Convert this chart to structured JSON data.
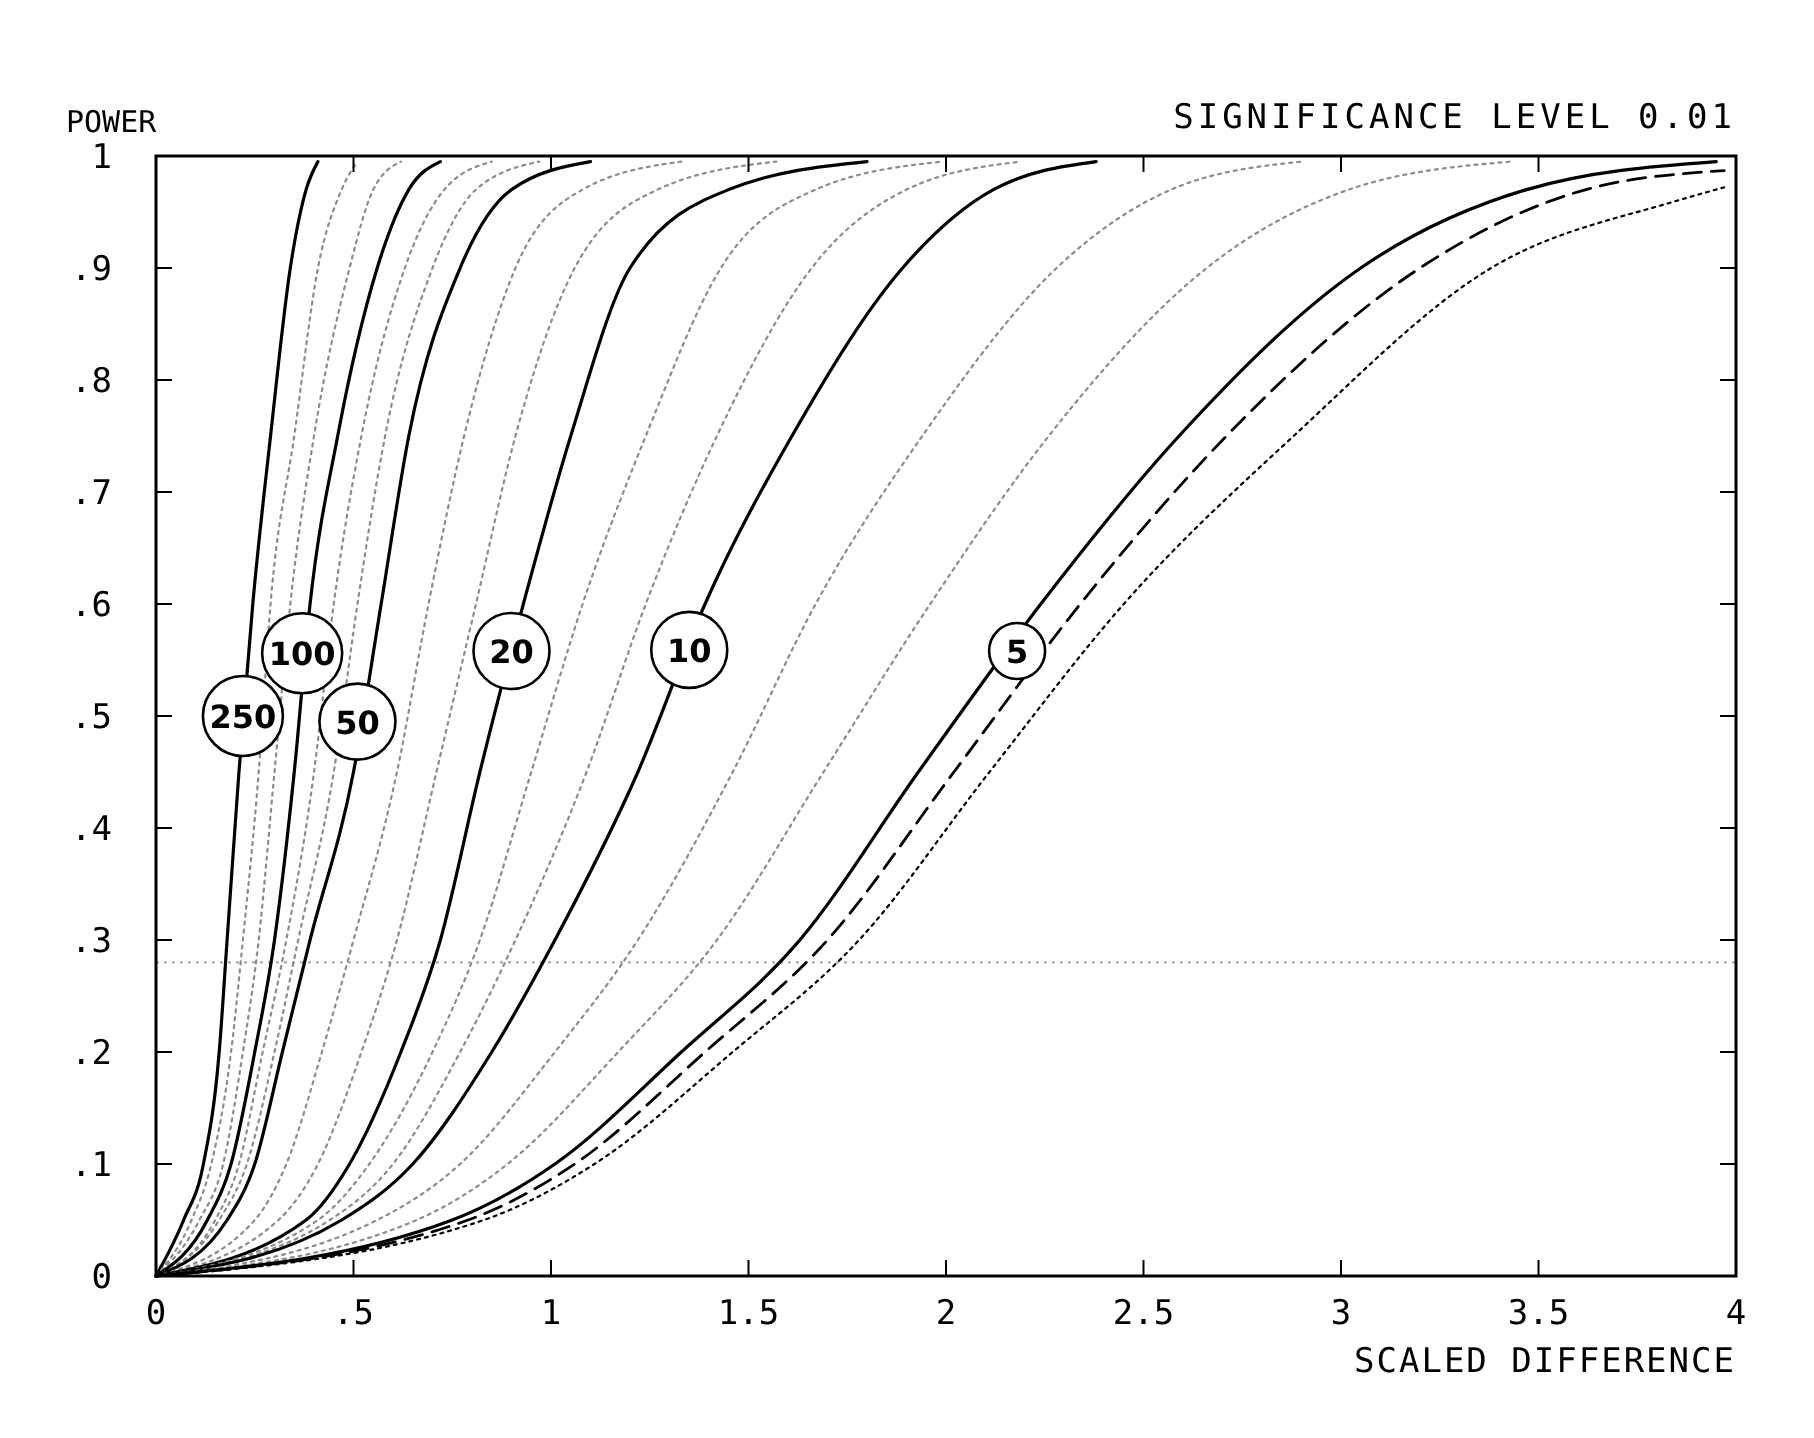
{
  "chart_data": {
    "type": "line",
    "title": "SIGNIFICANCE LEVEL 0.01",
    "xlabel": "SCALED DIFFERENCE",
    "ylabel": "POWER",
    "xlim": [
      0,
      4
    ],
    "ylim": [
      0,
      1
    ],
    "xticks": [
      0,
      {
        "value": 0.5,
        "label": ".5"
      },
      1,
      1.5,
      2,
      2.5,
      3,
      3.5,
      4
    ],
    "yticks": [
      0,
      {
        "value": 0.1,
        "label": ".1"
      },
      {
        "value": 0.2,
        "label": ".2"
      },
      {
        "value": 0.3,
        "label": ".3"
      },
      {
        "value": 0.4,
        "label": ".4"
      },
      {
        "value": 0.5,
        "label": ".5"
      },
      {
        "value": 0.6,
        "label": ".6"
      },
      {
        "value": 0.7,
        "label": ".7"
      },
      {
        "value": 0.8,
        "label": ".8"
      },
      {
        "value": 0.9,
        "label": ".9"
      },
      1
    ],
    "grid": false,
    "marker": "none",
    "ref_lines": [
      {
        "axis": "y",
        "value": 0.28,
        "color": "#aaaaaa",
        "line_style": "dotted"
      }
    ],
    "annotations": [
      {
        "text": "250",
        "x": 0.22,
        "y": 0.5
      },
      {
        "text": "100",
        "x": 0.37,
        "y": 0.556
      },
      {
        "text": "50",
        "x": 0.51,
        "y": 0.495
      },
      {
        "text": "20",
        "x": 0.9,
        "y": 0.558
      },
      {
        "text": "10",
        "x": 1.35,
        "y": 0.559
      },
      {
        "text": "5",
        "x": 2.18,
        "y": 0.558
      }
    ],
    "series": [
      {
        "color": "#000000",
        "line_style": "solid",
        "x": [
          0,
          0.07,
          0.12,
          0.16,
          0.18,
          0.21,
          0.245,
          0.29,
          0.34,
          0.38,
          0.41
        ],
        "values": [
          0,
          0.05,
          0.1,
          0.2,
          0.3,
          0.45,
          0.6,
          0.75,
          0.9,
          0.97,
          0.995
        ]
      },
      {
        "color": "#8c8c8c",
        "line_style": "dotted",
        "x": [
          0,
          0.09,
          0.14,
          0.19,
          0.22,
          0.26,
          0.29,
          0.35,
          0.41,
          0.47,
          0.51
        ],
        "values": [
          0,
          0.05,
          0.1,
          0.2,
          0.3,
          0.45,
          0.6,
          0.75,
          0.9,
          0.97,
          0.995
        ]
      },
      {
        "color": "#8c8c8c",
        "line_style": "dotted",
        "x": [
          0,
          0.11,
          0.17,
          0.22,
          0.26,
          0.3,
          0.34,
          0.4,
          0.49,
          0.55,
          0.62
        ],
        "values": [
          0,
          0.05,
          0.1,
          0.2,
          0.3,
          0.45,
          0.6,
          0.75,
          0.9,
          0.97,
          0.995
        ]
      },
      {
        "color": "#000000",
        "line_style": "solid",
        "x": [
          0,
          0.13,
          0.19,
          0.25,
          0.3,
          0.35,
          0.39,
          0.46,
          0.56,
          0.64,
          0.72
        ],
        "values": [
          0,
          0.05,
          0.1,
          0.2,
          0.3,
          0.45,
          0.6,
          0.75,
          0.9,
          0.97,
          0.995
        ]
      },
      {
        "color": "#8c8c8c",
        "line_style": "dotted",
        "x": [
          0,
          0.15,
          0.21,
          0.27,
          0.33,
          0.4,
          0.45,
          0.52,
          0.63,
          0.73,
          0.85
        ],
        "values": [
          0,
          0.05,
          0.1,
          0.2,
          0.3,
          0.45,
          0.6,
          0.75,
          0.9,
          0.97,
          0.995
        ]
      },
      {
        "color": "#8c8c8c",
        "line_style": "dotted",
        "x": [
          0,
          0.16,
          0.23,
          0.3,
          0.36,
          0.45,
          0.51,
          0.58,
          0.7,
          0.81,
          0.97
        ],
        "values": [
          0,
          0.05,
          0.1,
          0.2,
          0.3,
          0.45,
          0.6,
          0.75,
          0.9,
          0.97,
          0.995
        ]
      },
      {
        "color": "#000000",
        "line_style": "solid",
        "x": [
          0,
          0.18,
          0.25,
          0.32,
          0.39,
          0.5,
          0.57,
          0.64,
          0.77,
          0.9,
          1.1
        ],
        "values": [
          0,
          0.05,
          0.1,
          0.2,
          0.3,
          0.45,
          0.6,
          0.75,
          0.9,
          0.97,
          0.995
        ]
      },
      {
        "color": "#8c8c8c",
        "line_style": "dotted",
        "x": [
          0,
          0.25,
          0.33,
          0.42,
          0.5,
          0.61,
          0.69,
          0.78,
          0.91,
          1.08,
          1.33
        ],
        "values": [
          0,
          0.05,
          0.1,
          0.2,
          0.3,
          0.45,
          0.6,
          0.75,
          0.9,
          0.97,
          0.995
        ]
      },
      {
        "color": "#8c8c8c",
        "line_style": "dotted",
        "x": [
          0,
          0.31,
          0.41,
          0.52,
          0.61,
          0.71,
          0.81,
          0.91,
          1.06,
          1.27,
          1.57
        ],
        "values": [
          0,
          0.05,
          0.1,
          0.2,
          0.3,
          0.45,
          0.6,
          0.75,
          0.9,
          0.97,
          0.995
        ]
      },
      {
        "color": "#000000",
        "line_style": "solid",
        "x": [
          0,
          0.38,
          0.49,
          0.62,
          0.72,
          0.82,
          0.93,
          1.05,
          1.2,
          1.45,
          1.8
        ],
        "values": [
          0,
          0.05,
          0.1,
          0.2,
          0.3,
          0.45,
          0.6,
          0.75,
          0.9,
          0.97,
          0.995
        ]
      },
      {
        "color": "#8c8c8c",
        "line_style": "dotted",
        "x": [
          0,
          0.41,
          0.54,
          0.7,
          0.82,
          0.95,
          1.08,
          1.24,
          1.43,
          1.67,
          1.99
        ],
        "values": [
          0,
          0.05,
          0.1,
          0.2,
          0.3,
          0.45,
          0.6,
          0.75,
          0.9,
          0.97,
          0.995
        ]
      },
      {
        "color": "#8c8c8c",
        "line_style": "dotted",
        "x": [
          0,
          0.44,
          0.6,
          0.77,
          0.91,
          1.09,
          1.24,
          1.42,
          1.66,
          1.9,
          2.19
        ],
        "values": [
          0,
          0.05,
          0.1,
          0.2,
          0.3,
          0.45,
          0.6,
          0.75,
          0.9,
          0.97,
          0.995
        ]
      },
      {
        "color": "#000000",
        "line_style": "solid",
        "x": [
          0,
          0.47,
          0.65,
          0.85,
          1.01,
          1.22,
          1.39,
          1.61,
          1.89,
          2.12,
          2.38
        ],
        "values": [
          0,
          0.05,
          0.1,
          0.2,
          0.3,
          0.45,
          0.6,
          0.75,
          0.9,
          0.97,
          0.995
        ]
      },
      {
        "color": "#8c8c8c",
        "line_style": "dotted",
        "x": [
          0,
          0.56,
          0.77,
          1.01,
          1.22,
          1.46,
          1.67,
          1.94,
          2.28,
          2.57,
          2.9
        ],
        "values": [
          0,
          0.05,
          0.1,
          0.2,
          0.3,
          0.45,
          0.6,
          0.75,
          0.9,
          0.97,
          0.995
        ]
      },
      {
        "color": "#8c8c8c",
        "line_style": "dotted",
        "x": [
          0,
          0.66,
          0.89,
          1.17,
          1.42,
          1.69,
          1.96,
          2.26,
          2.66,
          3.02,
          3.43
        ],
        "values": [
          0,
          0.05,
          0.1,
          0.2,
          0.3,
          0.45,
          0.6,
          0.75,
          0.9,
          0.97,
          0.995
        ]
      },
      {
        "color": "#000000",
        "line_style": "solid",
        "x": [
          0,
          0.75,
          1.01,
          1.33,
          1.63,
          1.93,
          2.24,
          2.59,
          3.05,
          3.47,
          3.95
        ],
        "values": [
          0,
          0.05,
          0.1,
          0.2,
          0.3,
          0.45,
          0.6,
          0.75,
          0.9,
          0.97,
          0.995
        ]
      },
      {
        "color": "#000000",
        "line_style": "dashed",
        "x": [
          0,
          0.79,
          1.06,
          1.39,
          1.7,
          2.02,
          2.34,
          2.71,
          3.2,
          3.62,
          3.97
        ],
        "values": [
          0,
          0.05,
          0.1,
          0.2,
          0.3,
          0.45,
          0.6,
          0.75,
          0.9,
          0.97,
          0.987
        ]
      },
      {
        "color": "#000000",
        "line_style": "dotted",
        "x": [
          0,
          0.83,
          1.11,
          1.46,
          1.78,
          2.11,
          2.45,
          2.88,
          3.38,
          3.85,
          3.97
        ],
        "values": [
          0,
          0.05,
          0.1,
          0.2,
          0.3,
          0.45,
          0.6,
          0.75,
          0.9,
          0.96,
          0.972
        ]
      }
    ]
  }
}
